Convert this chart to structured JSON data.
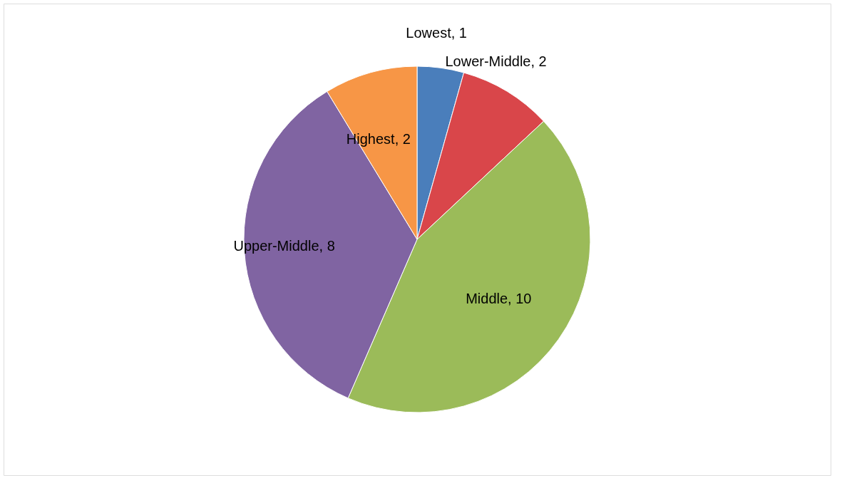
{
  "chart_data": {
    "type": "pie",
    "categories": [
      "Lowest",
      "Lower-Middle",
      "Middle",
      "Upper-Middle",
      "Highest"
    ],
    "values": [
      1,
      2,
      10,
      8,
      2
    ],
    "colors": [
      "#4a7ebb",
      "#d9464a",
      "#9bbb59",
      "#8064a2",
      "#f79646"
    ],
    "value_labels": [
      ", 1",
      ", 2",
      ", 10",
      ", 8",
      ", 2"
    ],
    "legend": false
  }
}
